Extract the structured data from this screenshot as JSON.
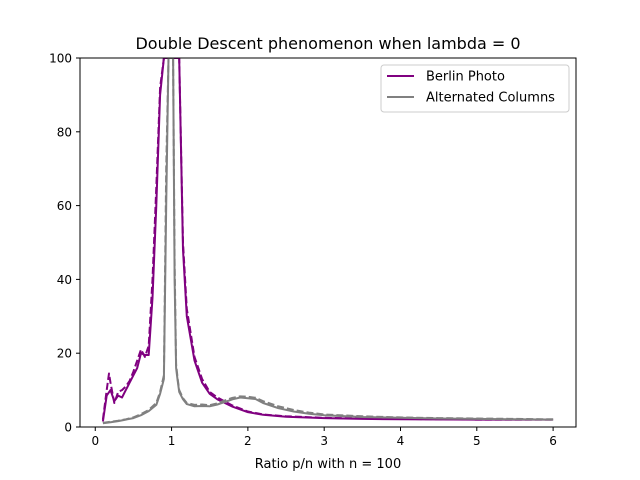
{
  "chart_data": {
    "type": "line",
    "title": "Double Descent phenomenon when lambda = 0",
    "xlabel": "Ratio p/n with n = 100",
    "ylabel": "",
    "xlim": [
      -0.2,
      6.3
    ],
    "ylim": [
      0,
      100
    ],
    "xticks": [
      0,
      1,
      2,
      3,
      4,
      5,
      6
    ],
    "yticks": [
      0,
      20,
      40,
      60,
      80,
      100
    ],
    "grid": false,
    "legend_position": "top-right",
    "series": [
      {
        "name": "Berlin Photo",
        "color": "#800080",
        "dash": "solid",
        "show_in_legend": true,
        "x": [
          0.1,
          0.15,
          0.2,
          0.25,
          0.3,
          0.35,
          0.4,
          0.45,
          0.5,
          0.55,
          0.6,
          0.65,
          0.7,
          0.75,
          0.8,
          0.85,
          0.9,
          0.93,
          0.96,
          0.98,
          1.0,
          1.02,
          1.05,
          1.1,
          1.15,
          1.2,
          1.3,
          1.4,
          1.5,
          1.6,
          1.8,
          2.0,
          2.2,
          2.5,
          3.0,
          3.5,
          4.0,
          5.0,
          6.0
        ],
        "values": [
          1.5,
          8.5,
          10,
          7,
          8.5,
          8,
          10,
          12,
          14,
          16,
          20,
          19.5,
          19.5,
          35,
          60,
          90,
          100,
          100,
          100,
          100,
          100,
          100,
          100,
          100,
          48,
          30,
          18,
          12,
          9,
          7.5,
          5.5,
          4,
          3.3,
          2.8,
          2.4,
          2.2,
          2.1,
          2.0,
          2.0
        ]
      },
      {
        "name": "Berlin Photo (dashed)",
        "color": "#800080",
        "dash": "dashed",
        "show_in_legend": false,
        "x": [
          0.1,
          0.15,
          0.18,
          0.2,
          0.25,
          0.3,
          0.35,
          0.4,
          0.45,
          0.5,
          0.55,
          0.6,
          0.65,
          0.7,
          0.75,
          0.8,
          0.85,
          0.9,
          0.93,
          0.96,
          0.98,
          1.0,
          1.02,
          1.05,
          1.1,
          1.15,
          1.2,
          1.3,
          1.4,
          1.5,
          1.6,
          1.8,
          2.0,
          2.2,
          2.5,
          3.0,
          3.5,
          4.0,
          5.0,
          6.0
        ],
        "values": [
          2,
          10,
          14.5,
          12,
          6.5,
          9.5,
          10,
          11,
          12.5,
          15,
          18,
          21,
          19,
          22,
          40,
          65,
          92,
          100,
          100,
          100,
          100,
          100,
          100,
          100,
          100,
          50,
          32,
          19,
          13,
          9.5,
          8,
          5.8,
          4.2,
          3.4,
          2.9,
          2.5,
          2.3,
          2.2,
          2.0,
          2.0
        ]
      },
      {
        "name": "Alternated Columns",
        "color": "#808080",
        "dash": "solid",
        "show_in_legend": true,
        "x": [
          0.1,
          0.2,
          0.3,
          0.4,
          0.5,
          0.6,
          0.7,
          0.8,
          0.85,
          0.9,
          0.93,
          0.96,
          0.98,
          1.0,
          1.02,
          1.04,
          1.06,
          1.08,
          1.1,
          1.15,
          1.2,
          1.3,
          1.4,
          1.5,
          1.6,
          1.7,
          1.8,
          1.9,
          2.0,
          2.1,
          2.2,
          2.4,
          2.6,
          2.8,
          3.0,
          3.5,
          4.0,
          4.5,
          5.0,
          5.5,
          6.0
        ],
        "values": [
          1,
          1.3,
          1.6,
          2,
          2.4,
          3.2,
          4.3,
          6,
          9,
          13,
          60,
          100,
          100,
          100,
          100,
          40,
          16,
          12.5,
          9.5,
          7.5,
          6.2,
          5.6,
          5.7,
          5.6,
          6.1,
          6.8,
          7.5,
          8.0,
          7.8,
          7.6,
          6.5,
          5.1,
          4.2,
          3.6,
          3.2,
          2.7,
          2.5,
          2.3,
          2.2,
          2.1,
          2.0
        ]
      },
      {
        "name": "Alternated Columns (dashed)",
        "color": "#808080",
        "dash": "dashed",
        "show_in_legend": false,
        "x": [
          0.1,
          0.2,
          0.3,
          0.4,
          0.5,
          0.6,
          0.7,
          0.8,
          0.85,
          0.9,
          0.93,
          0.96,
          0.98,
          1.0,
          1.02,
          1.04,
          1.06,
          1.08,
          1.1,
          1.15,
          1.2,
          1.3,
          1.4,
          1.5,
          1.6,
          1.7,
          1.8,
          1.9,
          2.0,
          2.1,
          2.2,
          2.4,
          2.6,
          2.8,
          3.0,
          3.5,
          4.0,
          4.5,
          5.0,
          5.5,
          6.0
        ],
        "values": [
          1.1,
          1.4,
          1.7,
          2.1,
          2.6,
          3.5,
          4.6,
          6.5,
          9.5,
          14,
          70,
          100,
          100,
          100,
          100,
          45,
          17,
          13,
          10,
          7.8,
          6.5,
          6.0,
          6.1,
          5.9,
          6.4,
          7.2,
          7.9,
          8.3,
          8.2,
          7.9,
          7.0,
          5.6,
          4.6,
          3.9,
          3.4,
          2.9,
          2.6,
          2.4,
          2.3,
          2.2,
          2.1
        ]
      }
    ]
  }
}
